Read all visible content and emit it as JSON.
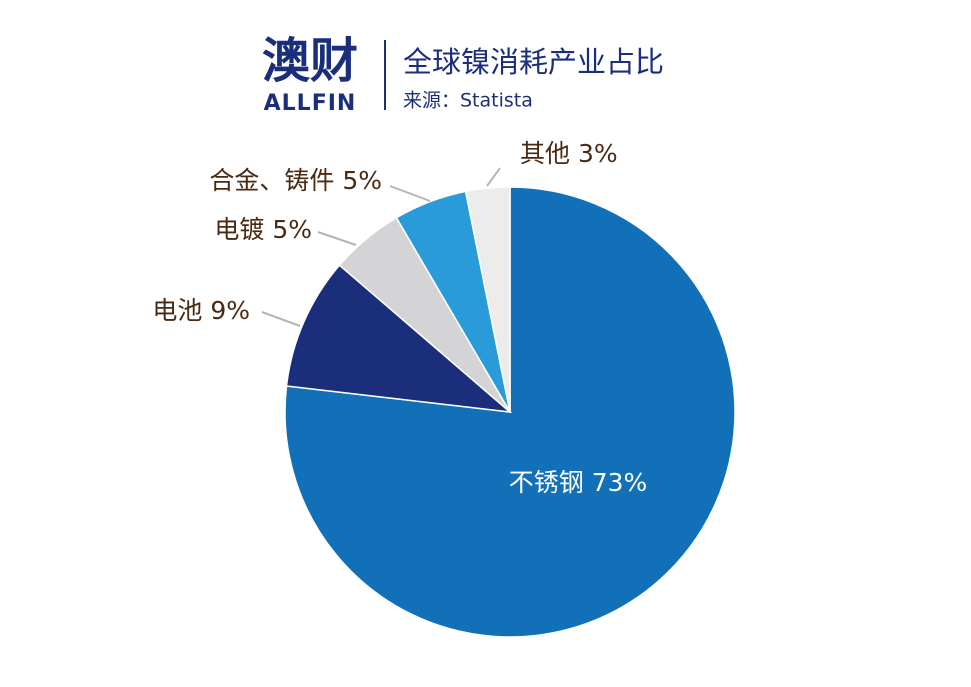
{
  "logo": {
    "name": "澳财",
    "brand": "ALLFIN"
  },
  "chart_data": {
    "type": "pie",
    "title": "全球镍消耗产业占比",
    "subtitle": "来源：Statista",
    "categories": [
      "不锈钢",
      "电池",
      "电镀",
      "合金、铸件",
      "其他"
    ],
    "values": [
      73,
      9,
      5,
      5,
      3
    ],
    "value_labels": [
      "73%",
      "9%",
      "5%",
      "5%",
      "3%"
    ],
    "colors": [
      "#1170b8",
      "#1b2e7c",
      "#d4d4d6",
      "#2a9bd9",
      "#ececec"
    ]
  }
}
